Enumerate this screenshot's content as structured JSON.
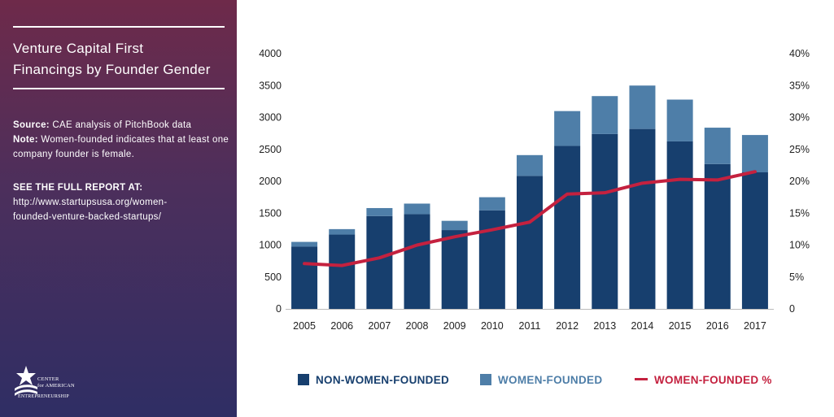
{
  "sidebar": {
    "title_line1": "Venture Capital First",
    "title_line2": "Financings by Founder Gender",
    "source_label": "Source:",
    "source_text": "CAE analysis of PitchBook data",
    "note_label": "Note:",
    "note_text": "Women-founded indicates that at least one company founder is female.",
    "report_heading": "SEE THE FULL REPORT AT:",
    "report_url_line1": "http://www.startupsusa.org/women-",
    "report_url_line2": "founded-venture-backed-startups/",
    "logo_line1": "CENTER",
    "logo_line2": "for AMERICAN",
    "logo_line3": "ENTREPRENEURSHIP"
  },
  "legend": {
    "non_women": "NON-WOMEN-FOUNDED",
    "women": "WOMEN-FOUNDED",
    "pct": "WOMEN-FOUNDED %"
  },
  "colors": {
    "non_women": "#173f6e",
    "women": "#4e7ea8",
    "pct_line": "#c4213f",
    "axis_text": "#222222"
  },
  "chart_data": {
    "type": "bar",
    "stacked": true,
    "categories": [
      "2005",
      "2006",
      "2007",
      "2008",
      "2009",
      "2010",
      "2011",
      "2012",
      "2013",
      "2014",
      "2015",
      "2016",
      "2017"
    ],
    "series": [
      {
        "name": "NON-WOMEN-FOUNDED",
        "axis": "left",
        "values": [
          975,
          1165,
          1455,
          1485,
          1235,
          1545,
          2085,
          2555,
          2740,
          2820,
          2625,
          2270,
          2140
        ]
      },
      {
        "name": "WOMEN-FOUNDED",
        "axis": "left",
        "values": [
          75,
          85,
          125,
          165,
          145,
          205,
          325,
          545,
          595,
          680,
          655,
          570,
          585
        ]
      },
      {
        "name": "WOMEN-FOUNDED %",
        "type": "line",
        "axis": "right",
        "values": [
          7.1,
          6.8,
          8.0,
          10.0,
          11.3,
          12.4,
          13.6,
          18.0,
          18.2,
          19.7,
          20.3,
          20.2,
          21.5
        ]
      }
    ],
    "ylim": [
      0,
      4000
    ],
    "yticks": [
      0,
      500,
      1000,
      1500,
      2000,
      2500,
      3000,
      3500,
      4000
    ],
    "y2lim": [
      0,
      40
    ],
    "y2ticks": [
      "0",
      "5%",
      "10%",
      "15%",
      "20%",
      "25%",
      "30%",
      "35%",
      "40%"
    ],
    "title": "Venture Capital First Financings by Founder Gender",
    "xlabel": "",
    "ylabel": "",
    "grid": false,
    "legend_position": "bottom"
  }
}
